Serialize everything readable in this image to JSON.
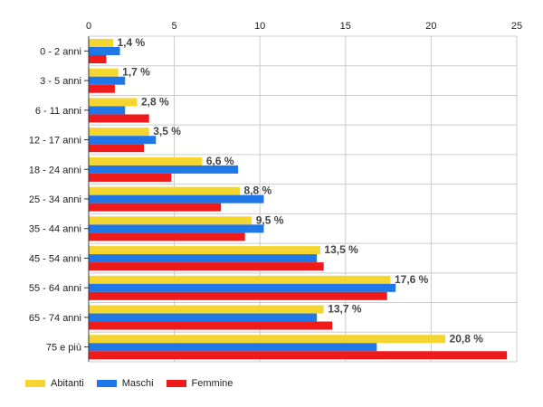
{
  "chart_data": {
    "type": "bar",
    "orientation": "horizontal",
    "categories": [
      "0 - 2 anni",
      "3 - 5 anni",
      "6 - 11 anni",
      "12 - 17 anni",
      "18 - 24 anni",
      "25 - 34 anni",
      "35 - 44 anni",
      "45 - 54 anni",
      "55 - 64 anni",
      "65 - 74 anni",
      "75 e più"
    ],
    "series": [
      {
        "name": "Abitanti",
        "color": "#f5d530",
        "values": [
          1.4,
          1.7,
          2.8,
          3.5,
          6.6,
          8.8,
          9.5,
          13.5,
          17.6,
          13.7,
          20.8
        ]
      },
      {
        "name": "Maschi",
        "color": "#1f77e8",
        "values": [
          1.8,
          2.1,
          2.1,
          3.9,
          8.7,
          10.2,
          10.2,
          13.3,
          17.9,
          13.3,
          16.8
        ]
      },
      {
        "name": "Femmine",
        "color": "#f01a1a",
        "values": [
          1.0,
          1.5,
          3.5,
          3.2,
          4.8,
          7.7,
          9.1,
          13.7,
          17.4,
          14.2,
          24.4
        ]
      }
    ],
    "data_labels": [
      "1,4 %",
      "1,7 %",
      "2,8 %",
      "3,5 %",
      "6,6 %",
      "8,8 %",
      "9,5 %",
      "13,5 %",
      "17,6 %",
      "13,7 %",
      "20,8 %"
    ],
    "x_ticks": [
      "0",
      "5",
      "10",
      "15",
      "20",
      "25"
    ],
    "xlim": [
      0,
      25
    ],
    "grid": true,
    "axis_position": "top",
    "legend_position": "bottom-left"
  }
}
